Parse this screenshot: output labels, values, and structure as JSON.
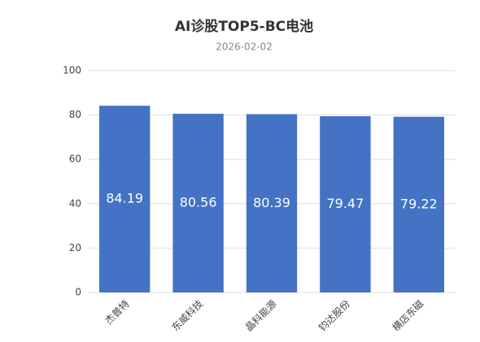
{
  "chart_data": {
    "type": "bar",
    "title": "AI诊股TOP5-BC电池",
    "subtitle": "2026-02-02",
    "categories": [
      "杰普特",
      "东威科技",
      "晶科能源",
      "钧达股份",
      "横店东磁"
    ],
    "values": [
      84.19,
      80.56,
      80.39,
      79.47,
      79.22
    ],
    "color": "#4472c4",
    "ylim": [
      0,
      100
    ],
    "yticks": [
      0,
      20,
      40,
      60,
      80,
      100
    ],
    "grid": true
  }
}
